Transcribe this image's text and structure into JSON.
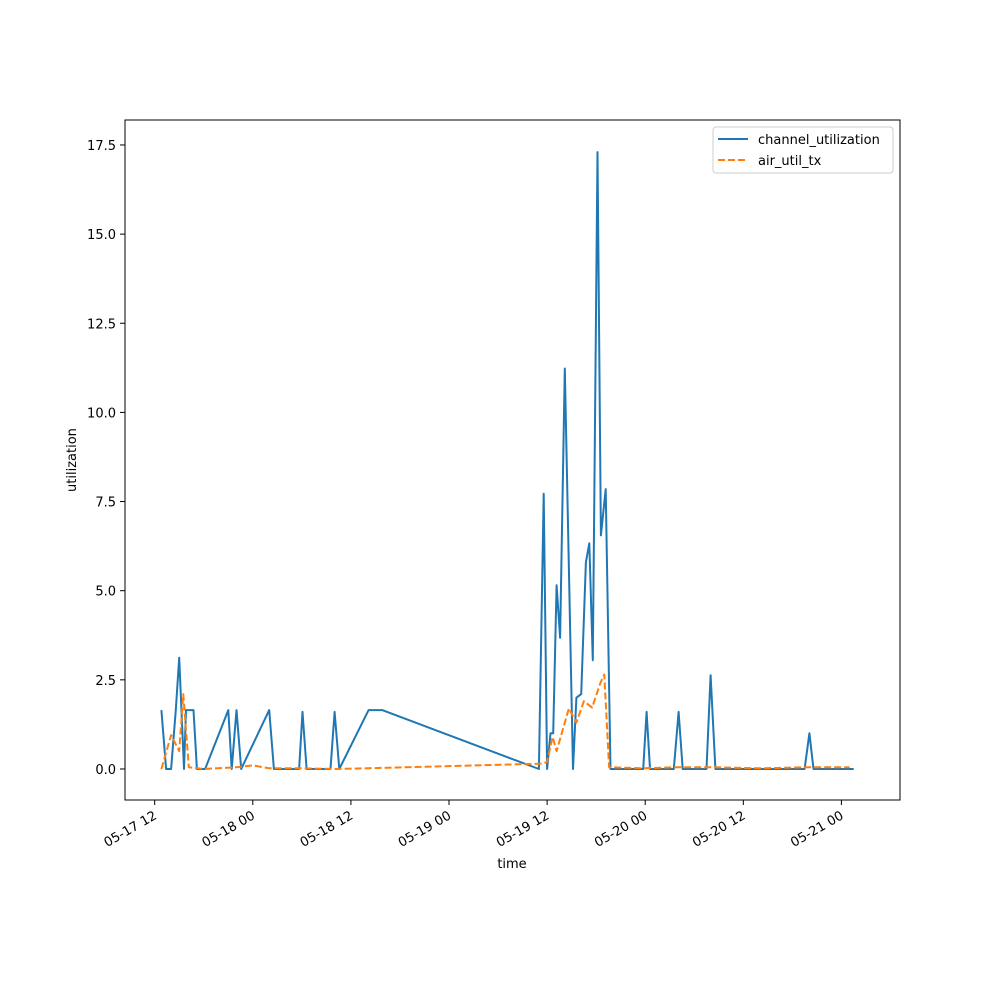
{
  "chart_data": {
    "type": "line",
    "xlabel": "time",
    "ylabel": "utilization",
    "x_axis_type": "datetime",
    "xlim": [
      "2025-05-17T08:22",
      "2025-05-21T07:10"
    ],
    "ylim": [
      -0.87,
      18.2
    ],
    "x_ticks": [
      {
        "value": "2025-05-17T12:00",
        "label": "05-17 12"
      },
      {
        "value": "2025-05-18T00:00",
        "label": "05-18 00"
      },
      {
        "value": "2025-05-18T12:00",
        "label": "05-18 12"
      },
      {
        "value": "2025-05-19T00:00",
        "label": "05-19 00"
      },
      {
        "value": "2025-05-19T12:00",
        "label": "05-19 12"
      },
      {
        "value": "2025-05-20T00:00",
        "label": "05-20 00"
      },
      {
        "value": "2025-05-20T12:00",
        "label": "05-20 12"
      },
      {
        "value": "2025-05-21T00:00",
        "label": "05-21 00"
      }
    ],
    "y_ticks": [
      0.0,
      2.5,
      5.0,
      7.5,
      10.0,
      12.5,
      15.0,
      17.5
    ],
    "y_tick_labels": [
      "0.0",
      "2.5",
      "5.0",
      "7.5",
      "10.0",
      "12.5",
      "15.0",
      "17.5"
    ],
    "legend_position": "upper-right",
    "grid": false,
    "series": [
      {
        "name": "channel_utilization",
        "color": "#1f77b4",
        "style": "solid",
        "points": [
          [
            "2025-05-17T12:49",
            1.65
          ],
          [
            "2025-05-17T13:24",
            0.0
          ],
          [
            "2025-05-17T14:00",
            0.0
          ],
          [
            "2025-05-17T14:35",
            1.65
          ],
          [
            "2025-05-17T15:00",
            3.12
          ],
          [
            "2025-05-17T15:35",
            0.0
          ],
          [
            "2025-05-17T15:50",
            1.65
          ],
          [
            "2025-05-17T16:45",
            1.65
          ],
          [
            "2025-05-17T17:10",
            0.0
          ],
          [
            "2025-05-17T18:10",
            0.0
          ],
          [
            "2025-05-17T21:00",
            1.65
          ],
          [
            "2025-05-17T21:25",
            0.0
          ],
          [
            "2025-05-17T22:00",
            1.65
          ],
          [
            "2025-05-17T22:35",
            0.0
          ],
          [
            "2025-05-18T02:00",
            1.65
          ],
          [
            "2025-05-18T02:35",
            0.0
          ],
          [
            "2025-05-18T05:40",
            0.0
          ],
          [
            "2025-05-18T06:05",
            1.6
          ],
          [
            "2025-05-18T06:35",
            0.0
          ],
          [
            "2025-05-18T09:30",
            0.0
          ],
          [
            "2025-05-18T10:00",
            1.6
          ],
          [
            "2025-05-18T10:35",
            0.0
          ],
          [
            "2025-05-18T14:10",
            1.65
          ],
          [
            "2025-05-18T15:50",
            1.65
          ],
          [
            "2025-05-19T11:00",
            0.0
          ],
          [
            "2025-05-19T11:35",
            7.72
          ],
          [
            "2025-05-19T12:00",
            0.0
          ],
          [
            "2025-05-19T12:25",
            1.0
          ],
          [
            "2025-05-19T12:45",
            1.0
          ],
          [
            "2025-05-19T13:10",
            5.15
          ],
          [
            "2025-05-19T13:35",
            3.68
          ],
          [
            "2025-05-19T14:10",
            11.23
          ],
          [
            "2025-05-19T15:10",
            0.0
          ],
          [
            "2025-05-19T15:35",
            2.0
          ],
          [
            "2025-05-19T16:10",
            2.1
          ],
          [
            "2025-05-19T16:45",
            5.8
          ],
          [
            "2025-05-19T17:10",
            6.33
          ],
          [
            "2025-05-19T17:35",
            3.05
          ],
          [
            "2025-05-19T18:10",
            17.3
          ],
          [
            "2025-05-19T18:35",
            6.55
          ],
          [
            "2025-05-19T19:10",
            7.85
          ],
          [
            "2025-05-19T19:45",
            0.0
          ],
          [
            "2025-05-19T23:45",
            0.0
          ],
          [
            "2025-05-20T00:10",
            1.6
          ],
          [
            "2025-05-20T00:35",
            0.0
          ],
          [
            "2025-05-20T03:30",
            0.0
          ],
          [
            "2025-05-20T04:05",
            1.6
          ],
          [
            "2025-05-20T04:35",
            0.0
          ],
          [
            "2025-05-20T07:30",
            0.0
          ],
          [
            "2025-05-20T08:00",
            2.63
          ],
          [
            "2025-05-20T08:35",
            0.0
          ],
          [
            "2025-05-20T19:30",
            0.0
          ],
          [
            "2025-05-20T20:05",
            1.0
          ],
          [
            "2025-05-20T20:35",
            0.0
          ],
          [
            "2025-05-21T01:30",
            0.0
          ]
        ]
      },
      {
        "name": "air_util_tx",
        "color": "#ff7f0e",
        "style": "dashed",
        "points": [
          [
            "2025-05-17T12:49",
            0.0
          ],
          [
            "2025-05-17T14:00",
            0.95
          ],
          [
            "2025-05-17T15:00",
            0.5
          ],
          [
            "2025-05-17T15:30",
            2.1
          ],
          [
            "2025-05-17T16:10",
            0.05
          ],
          [
            "2025-05-17T18:00",
            0.0
          ],
          [
            "2025-05-17T22:00",
            0.05
          ],
          [
            "2025-05-18T00:00",
            0.1
          ],
          [
            "2025-05-18T02:00",
            0.02
          ],
          [
            "2025-05-18T06:00",
            0.02
          ],
          [
            "2025-05-18T10:00",
            0.0
          ],
          [
            "2025-05-18T14:00",
            0.02
          ],
          [
            "2025-05-19T11:30",
            0.15
          ],
          [
            "2025-05-19T12:00",
            0.2
          ],
          [
            "2025-05-19T12:40",
            0.9
          ],
          [
            "2025-05-19T13:10",
            0.5
          ],
          [
            "2025-05-19T13:40",
            0.9
          ],
          [
            "2025-05-19T14:40",
            1.7
          ],
          [
            "2025-05-19T15:35",
            1.3
          ],
          [
            "2025-05-19T16:30",
            1.9
          ],
          [
            "2025-05-19T17:30",
            1.72
          ],
          [
            "2025-05-19T18:30",
            2.4
          ],
          [
            "2025-05-19T19:00",
            2.65
          ],
          [
            "2025-05-19T19:35",
            0.05
          ],
          [
            "2025-05-19T23:45",
            0.02
          ],
          [
            "2025-05-20T04:00",
            0.05
          ],
          [
            "2025-05-20T08:00",
            0.05
          ],
          [
            "2025-05-20T14:00",
            0.02
          ],
          [
            "2025-05-20T20:00",
            0.05
          ],
          [
            "2025-05-21T01:00",
            0.05
          ]
        ]
      }
    ]
  }
}
